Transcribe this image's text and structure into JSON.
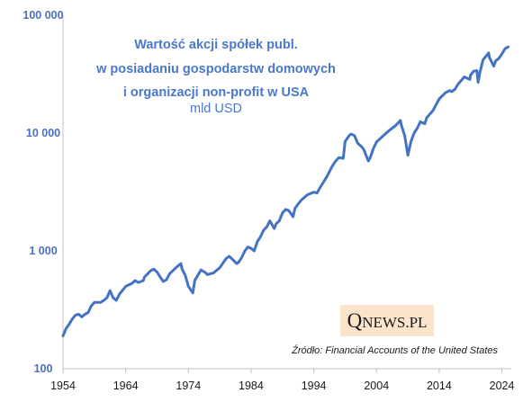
{
  "chart_data": {
    "type": "line",
    "title_lines": [
      "Wartość akcji spółek publ.",
      "w posiadaniu gospodarstw domowych",
      "i organizacji non-profit w USA"
    ],
    "subtitle": "mld USD",
    "source": "Źródło: Financial Accounts of the United States",
    "yscale": "log",
    "ylim": [
      100,
      100000
    ],
    "yticks": [
      100,
      1000,
      10000,
      100000
    ],
    "ytick_labels": [
      "100",
      "1 000",
      "10 000",
      "100 000"
    ],
    "xlim": [
      1954,
      2025.5
    ],
    "xticks": [
      1954,
      1964,
      1974,
      1984,
      1994,
      2004,
      2014,
      2024
    ],
    "xtick_labels": [
      "1954",
      "1964",
      "1974",
      "1984",
      "1994",
      "2004",
      "2014",
      "2024"
    ],
    "grid": false,
    "line_color": "#4472c4",
    "series": [
      {
        "x": [
          1954,
          1954.5,
          1955,
          1955.5,
          1956,
          1956.5,
          1957,
          1957.5,
          1958,
          1958.5,
          1959,
          1960,
          1960.5,
          1961,
          1961.5,
          1962,
          1962.5,
          1963,
          1964,
          1965,
          1965.5,
          1966,
          1966.8,
          1967,
          1968,
          1968.5,
          1969,
          1969.5,
          1970,
          1970.5,
          1971,
          1972,
          1972.8,
          1973,
          1973.5,
          1974,
          1974.7,
          1975,
          1975.5,
          1976,
          1976.8,
          1977,
          1977.5,
          1978,
          1979,
          1980,
          1980.5,
          1981,
          1981.7,
          1982,
          1982.5,
          1983,
          1983.5,
          1984,
          1984.5,
          1985,
          1985.5,
          1986,
          1986.5,
          1987,
          1987.7,
          1988,
          1988.5,
          1989,
          1989.5,
          1990,
          1990.7,
          1991,
          1991.5,
          1992,
          1993,
          1994,
          1994.5,
          1995,
          1995.5,
          1996,
          1997,
          1997.5,
          1998,
          1998.7,
          1999,
          1999.7,
          2000,
          2000.5,
          2001,
          2001.7,
          2002,
          2002.7,
          2003,
          2003.5,
          2004,
          2005,
          2006,
          2007,
          2007.8,
          2008,
          2008.5,
          2009,
          2009.5,
          2010,
          2010.5,
          2011,
          2011.7,
          2012,
          2013,
          2014,
          2015,
          2015.7,
          2016,
          2016.5,
          2017,
          2018,
          2018.9,
          2019,
          2019.5,
          2020,
          2020.2,
          2020.5,
          2021,
          2021.9,
          2022,
          2022.7,
          2023,
          2023.5,
          2024,
          2024.5,
          2025
        ],
        "y": [
          190,
          220,
          240,
          265,
          285,
          290,
          275,
          290,
          300,
          340,
          365,
          365,
          380,
          400,
          460,
          400,
          380,
          430,
          500,
          530,
          560,
          540,
          560,
          600,
          680,
          700,
          660,
          600,
          550,
          570,
          640,
          720,
          780,
          700,
          620,
          500,
          440,
          560,
          620,
          690,
          650,
          630,
          640,
          650,
          720,
          860,
          900,
          850,
          780,
          800,
          880,
          1000,
          1080,
          1050,
          1000,
          1200,
          1320,
          1500,
          1600,
          1800,
          1550,
          1700,
          1800,
          2100,
          2250,
          2200,
          1950,
          2300,
          2500,
          2700,
          3000,
          3150,
          3100,
          3450,
          3800,
          4200,
          5300,
          5800,
          6200,
          6100,
          8500,
          9600,
          9800,
          9500,
          8200,
          7600,
          7200,
          5800,
          6200,
          7400,
          8400,
          9400,
          10500,
          11500,
          12800,
          11500,
          9500,
          6500,
          8500,
          10000,
          11000,
          12500,
          12000,
          13500,
          15500,
          19500,
          22000,
          23000,
          22500,
          23500,
          26000,
          30000,
          28500,
          31000,
          33500,
          34000,
          27000,
          33000,
          42000,
          48000,
          44000,
          37000,
          41000,
          43000,
          47000,
          52000,
          54000
        ]
      }
    ]
  },
  "branding": {
    "logo_q": "Q",
    "logo_rest": "NEWS.PL"
  }
}
